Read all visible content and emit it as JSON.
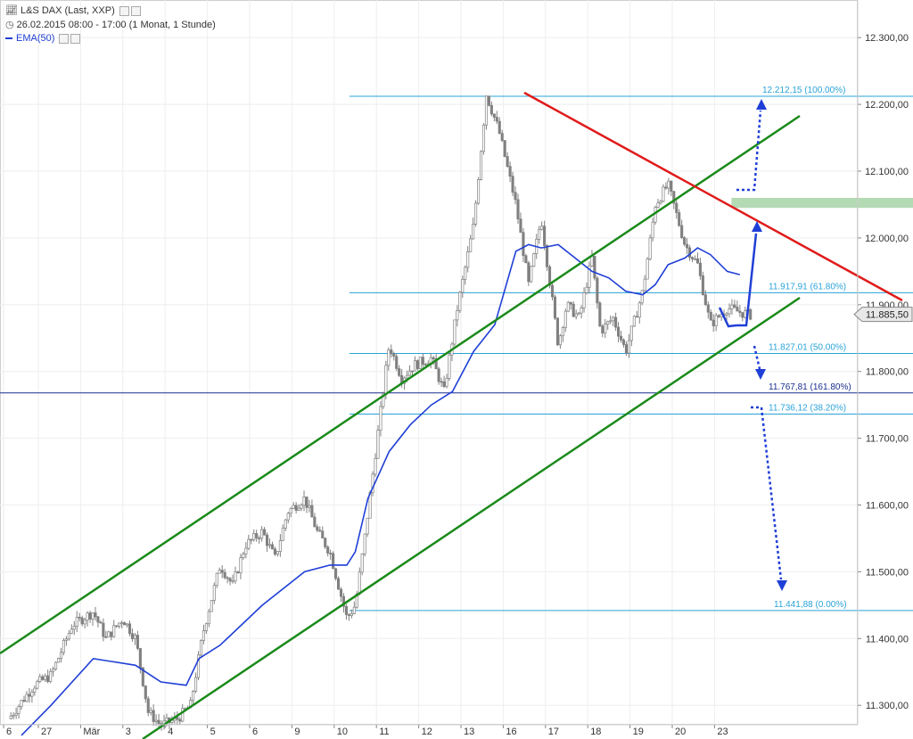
{
  "header": {
    "title": "L&S DAX (Last, XXP)",
    "timeframe": "26.02.2015 08:00 - 17:00 (1 Monat, 1 Stunde)",
    "indicator": "EMA(50)"
  },
  "colors": {
    "candle": "#808080",
    "ema": "#1f3fd6",
    "channel": "#1a8a1a",
    "resistance": "#e01b1b",
    "fib": "#2aa3d8",
    "level": "#1a2f8f",
    "zone": "#a7d4a7",
    "arrows": "#1f3fd6"
  },
  "chart_data": {
    "type": "line",
    "instrument": "L&S DAX",
    "x_ticks": [
      "6",
      "27",
      "Mär",
      "3",
      "4",
      "5",
      "6",
      "9",
      "10",
      "11",
      "12",
      "13",
      "16",
      "17",
      "18",
      "19",
      "20",
      "23"
    ],
    "y_ticks": [
      "12.300,00",
      "12.200,00",
      "12.100,00",
      "12.000,00",
      "11.900,00",
      "11.800,00",
      "11.700,00",
      "11.600,00",
      "11.500,00",
      "11.400,00",
      "11.300,00"
    ],
    "y_tick_values": [
      12300,
      12200,
      12100,
      12000,
      11900,
      11800,
      11700,
      11600,
      11500,
      11400,
      11300
    ],
    "ylim": [
      11260,
      12345
    ],
    "last_price": {
      "value": 11885.5,
      "label": "11.885,50"
    },
    "price_series": {
      "name": "L&S DAX",
      "x": [
        0,
        0.6,
        1,
        1.5,
        2,
        2.3,
        2.7,
        3,
        3.3,
        3.6,
        4,
        4.3,
        4.6,
        5,
        5.3,
        5.6,
        6,
        6.3,
        6.6,
        7,
        7.3,
        7.6,
        8,
        8.2,
        8.4,
        8.7,
        9,
        9.3,
        9.6,
        10,
        10.3,
        10.6,
        11,
        11.3,
        11.6,
        12,
        12.3,
        12.6,
        13,
        13.2,
        13.5,
        13.8,
        14,
        14.3,
        14.6,
        15,
        15.3,
        15.6,
        16,
        16.3,
        16.6,
        17,
        17.5
      ],
      "values": [
        11280,
        11330,
        11345,
        11420,
        11440,
        11400,
        11430,
        11400,
        11290,
        11270,
        11280,
        11300,
        11410,
        11510,
        11480,
        11540,
        11560,
        11520,
        11590,
        11610,
        11560,
        11530,
        11430,
        11450,
        11540,
        11690,
        11840,
        11790,
        11810,
        11820,
        11770,
        11890,
        12020,
        12215,
        12160,
        12050,
        11930,
        12030,
        11840,
        11900,
        11880,
        11970,
        11860,
        11880,
        11830,
        11920,
        12050,
        12080,
        11990,
        11960,
        11870,
        11895,
        11885
      ]
    },
    "ema_series": {
      "name": "EMA(50)",
      "x": [
        0.3,
        1,
        2,
        3,
        3.6,
        4.2,
        4.5,
        5,
        6,
        7,
        7.6,
        8,
        8.2,
        8.5,
        9,
        9.5,
        10,
        10.5,
        11,
        11.5,
        12,
        12.3,
        12.6,
        13,
        13.4,
        13.8,
        14.2,
        14.6,
        15,
        15.3,
        15.6,
        16,
        16.3,
        16.6,
        17,
        17.3
      ],
      "values": [
        11255,
        11300,
        11370,
        11360,
        11335,
        11330,
        11370,
        11390,
        11450,
        11500,
        11510,
        11510,
        11530,
        11610,
        11680,
        11720,
        11750,
        11770,
        11830,
        11870,
        11980,
        11990,
        11985,
        11990,
        11970,
        11950,
        11940,
        11920,
        11915,
        11930,
        11960,
        11970,
        11985,
        11975,
        11950,
        11945
      ]
    },
    "annotations": [
      {
        "type": "fib",
        "label": "12.212,15 (100.00%)",
        "value": 12212.15
      },
      {
        "type": "fib",
        "label": "11.917,91 (61.80%)",
        "value": 11917.91
      },
      {
        "type": "fib",
        "label": "11.827,01 (50.00%)",
        "value": 11827.01
      },
      {
        "type": "level",
        "label": "11.767,81 (161.80%)",
        "value": 11767.81
      },
      {
        "type": "fib",
        "label": "11.736,12 (38.20%)",
        "value": 11736.12
      },
      {
        "type": "fib",
        "label": "11.441,88 (0.00%)",
        "value": 11441.88
      }
    ],
    "grid": true
  }
}
